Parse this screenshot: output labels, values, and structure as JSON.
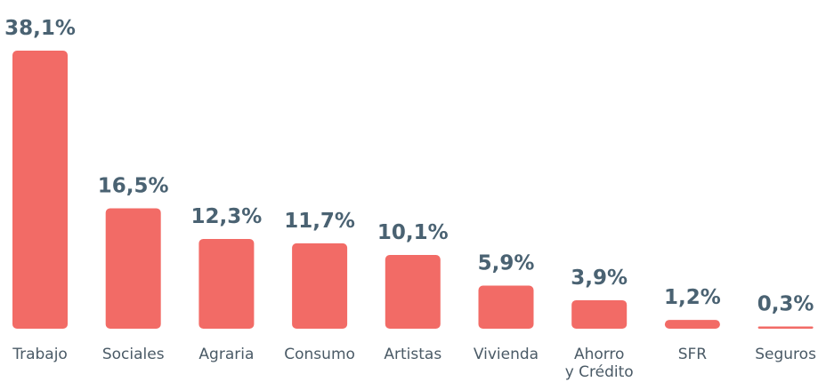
{
  "chart_data": {
    "type": "bar",
    "categories": [
      "Trabajo",
      "Sociales",
      "Agraria",
      "Consumo",
      "Artistas",
      "Vivienda",
      "Ahorro y Crédito",
      "SFR",
      "Seguros"
    ],
    "values": [
      38.1,
      16.5,
      12.3,
      11.7,
      10.1,
      5.9,
      3.9,
      1.2,
      0.3
    ],
    "value_labels": [
      "38,1%",
      "16,5%",
      "12,3%",
      "11,7%",
      "10,1%",
      "5,9%",
      "3,9%",
      "1,2%",
      "0,3%"
    ],
    "color": "#f26b66"
  }
}
